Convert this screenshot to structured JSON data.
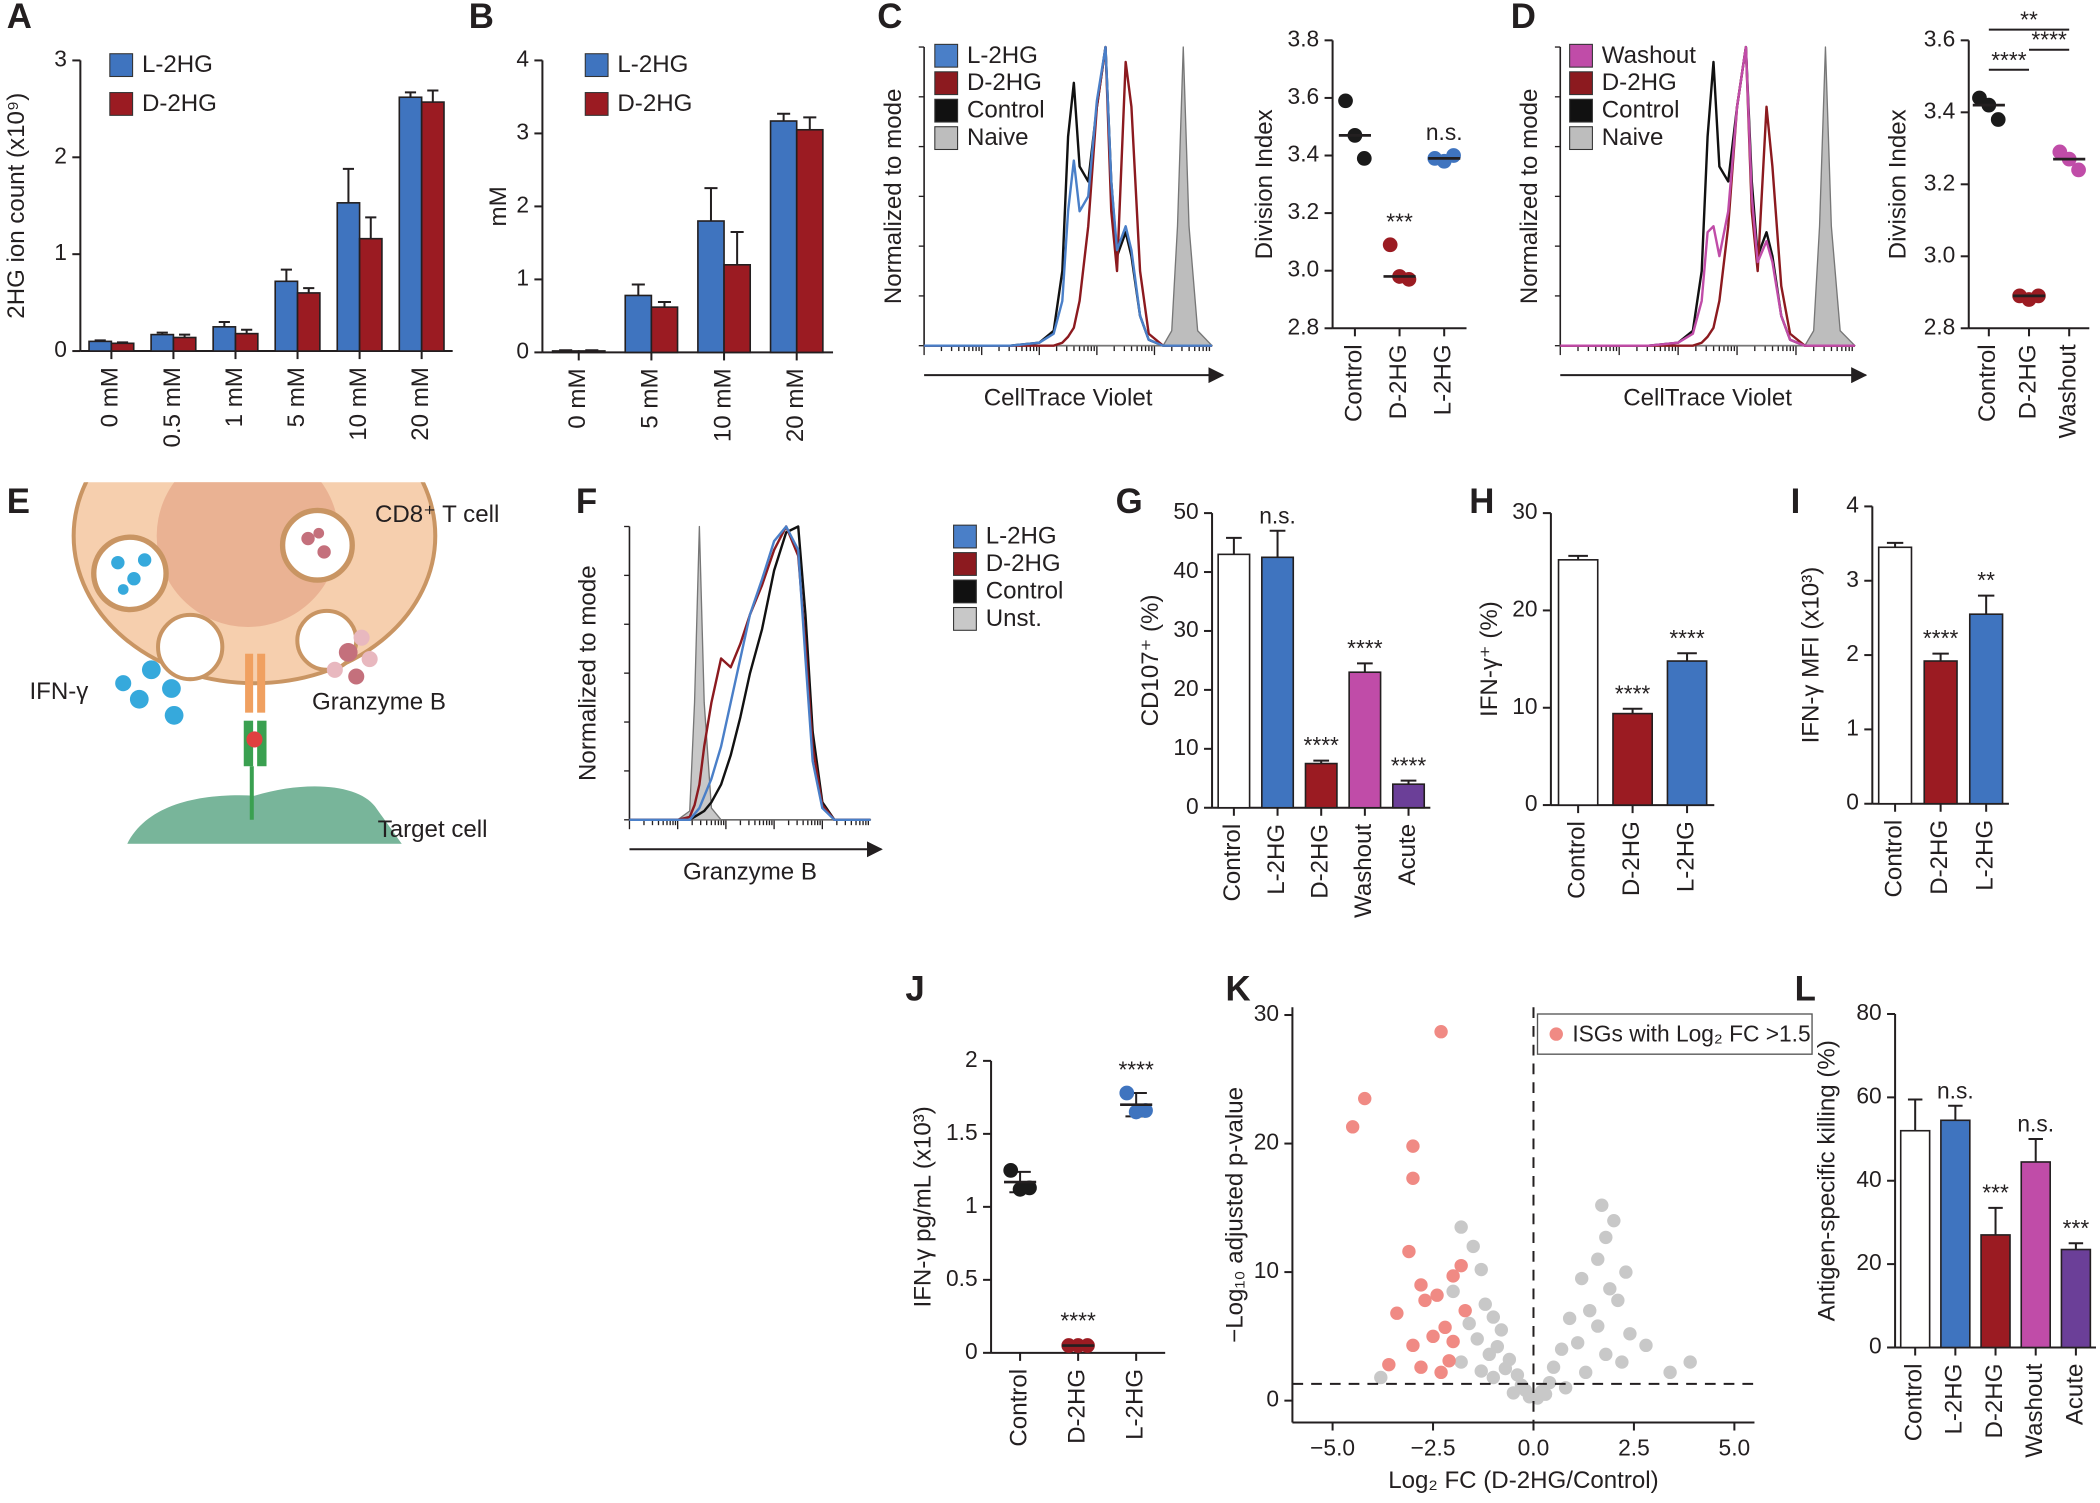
{
  "chart_data": [
    {
      "type": "bar",
      "panel": "A",
      "ylabel": "2HG ion count (x10⁹)",
      "categories": [
        "0 mM",
        "0.5 mM",
        "1 mM",
        "5 mM",
        "10 mM",
        "20 mM"
      ],
      "series": [
        {
          "name": "L-2HG",
          "color": "#3f74bf",
          "values": [
            0.1,
            0.17,
            0.25,
            0.72,
            1.53,
            2.62
          ],
          "errors": [
            0.01,
            0.02,
            0.05,
            0.12,
            0.35,
            0.05
          ]
        },
        {
          "name": "D-2HG",
          "color": "#9b1b22",
          "values": [
            0.08,
            0.14,
            0.18,
            0.6,
            1.16,
            2.57
          ],
          "errors": [
            0.01,
            0.03,
            0.04,
            0.05,
            0.22,
            0.12
          ]
        }
      ],
      "ylim": [
        0,
        3
      ],
      "yticks": [
        0,
        1,
        2,
        3
      ]
    },
    {
      "type": "bar",
      "panel": "B",
      "ylabel": "mM",
      "categories": [
        "0 mM",
        "5 mM",
        "10 mM",
        "20 mM"
      ],
      "series": [
        {
          "name": "L-2HG",
          "color": "#3f74bf",
          "values": [
            0.02,
            0.78,
            1.8,
            3.17
          ],
          "errors": [
            0.01,
            0.15,
            0.45,
            0.1
          ]
        },
        {
          "name": "D-2HG",
          "color": "#9b1b22",
          "values": [
            0.02,
            0.62,
            1.2,
            3.05
          ],
          "errors": [
            0.01,
            0.07,
            0.45,
            0.17
          ]
        }
      ],
      "ylim": [
        0,
        4
      ],
      "yticks": [
        0,
        1,
        2,
        3,
        4
      ]
    },
    {
      "type": "flow",
      "panel": "C",
      "xlabel": "CellTrace Violet",
      "ylabel": "Normalized to mode",
      "x": [
        0,
        30,
        40,
        45,
        48,
        50,
        52,
        54,
        57,
        60,
        63,
        65,
        67,
        70,
        72,
        75,
        78,
        83,
        86,
        88,
        90,
        92,
        95,
        100
      ],
      "series": [
        {
          "name": "L-2HG",
          "color": "#4a7fc8",
          "values": [
            0,
            0,
            1,
            4,
            15,
            45,
            62,
            45,
            50,
            82,
            100,
            55,
            32,
            40,
            32,
            10,
            2,
            0,
            0,
            0,
            0,
            0,
            0,
            0
          ]
        },
        {
          "name": "D-2HG",
          "color": "#8c1a1f",
          "values": [
            0,
            0,
            0,
            0,
            1,
            3,
            6,
            15,
            40,
            80,
            100,
            45,
            25,
            95,
            80,
            25,
            4,
            0,
            0,
            0,
            0,
            0,
            0,
            0
          ]
        },
        {
          "name": "Control",
          "color": "#111111",
          "values": [
            0,
            0,
            1,
            5,
            25,
            70,
            88,
            60,
            55,
            80,
            100,
            55,
            30,
            38,
            30,
            10,
            2,
            0,
            0,
            0,
            0,
            0,
            0,
            0
          ]
        },
        {
          "name": "Naive",
          "color": "#bdbdbd",
          "fill": true,
          "values": [
            0,
            0,
            0,
            0,
            0,
            0,
            0,
            0,
            0,
            0,
            0,
            0,
            0,
            0,
            0,
            0,
            0,
            0,
            5,
            40,
            100,
            40,
            5,
            0
          ]
        }
      ],
      "xlim": [
        0,
        100
      ],
      "ylim": [
        0,
        100
      ]
    },
    {
      "type": "dot",
      "ylabel": "Division Index",
      "categories": [
        "Control",
        "D-2HG",
        "L-2HG"
      ],
      "colors": [
        "#1a1a1a",
        "#9b1b22",
        "#3f74bf"
      ],
      "points": [
        [
          3.59,
          3.47,
          3.39
        ],
        [
          3.09,
          2.98,
          2.97
        ],
        [
          3.39,
          3.38,
          3.4
        ]
      ],
      "means": [
        3.47,
        2.98,
        3.39
      ],
      "annotations": [
        null,
        "***",
        "n.s."
      ],
      "ylim": [
        2.8,
        3.8
      ],
      "yticks": [
        2.8,
        {
          "value": 3,
          "label": "3.0"
        },
        3.2,
        3.4,
        3.6,
        3.8
      ]
    },
    {
      "type": "flow",
      "panel": "D",
      "xlabel": "CellTrace Violet",
      "ylabel": "Normalized to mode",
      "x": [
        0,
        30,
        40,
        45,
        48,
        50,
        52,
        54,
        57,
        60,
        63,
        65,
        67,
        70,
        72,
        75,
        78,
        83,
        86,
        88,
        90,
        92,
        95,
        100
      ],
      "series": [
        {
          "name": "Washout",
          "color": "#c04ca8",
          "values": [
            0,
            0,
            1,
            4,
            15,
            38,
            40,
            30,
            45,
            80,
            100,
            50,
            28,
            35,
            28,
            10,
            2,
            0,
            0,
            0,
            0,
            0,
            0,
            0
          ]
        },
        {
          "name": "D-2HG",
          "color": "#8c1a1f",
          "values": [
            0,
            0,
            0,
            0,
            1,
            3,
            6,
            15,
            40,
            80,
            100,
            45,
            25,
            80,
            60,
            20,
            4,
            0,
            0,
            0,
            0,
            0,
            0,
            0
          ]
        },
        {
          "name": "Control",
          "color": "#111111",
          "values": [
            0,
            0,
            1,
            5,
            25,
            70,
            95,
            60,
            55,
            80,
            100,
            55,
            30,
            38,
            30,
            10,
            2,
            0,
            0,
            0,
            0,
            0,
            0,
            0
          ]
        },
        {
          "name": "Naive",
          "color": "#bdbdbd",
          "fill": true,
          "values": [
            0,
            0,
            0,
            0,
            0,
            0,
            0,
            0,
            0,
            0,
            0,
            0,
            0,
            0,
            0,
            0,
            0,
            0,
            5,
            40,
            100,
            40,
            5,
            0
          ]
        }
      ],
      "xlim": [
        0,
        100
      ],
      "ylim": [
        0,
        100
      ]
    },
    {
      "type": "dot",
      "ylabel": "Division Index",
      "categories": [
        "Control",
        "D-2HG",
        "Washout"
      ],
      "colors": [
        "#1a1a1a",
        "#9b1b22",
        "#c04ca8"
      ],
      "points": [
        [
          3.44,
          3.42,
          3.38
        ],
        [
          2.89,
          2.88,
          2.89
        ],
        [
          3.29,
          3.27,
          3.24
        ]
      ],
      "means": [
        3.42,
        2.89,
        3.27
      ],
      "comparisons": [
        {
          "groups": [
            "Control",
            "Washout"
          ],
          "label": "**"
        },
        {
          "groups": [
            "D-2HG",
            "Washout"
          ],
          "label": "****"
        },
        {
          "groups": [
            "Control",
            "D-2HG"
          ],
          "label": "****"
        }
      ],
      "ylim": [
        2.8,
        3.6
      ],
      "yticks": [
        2.8,
        {
          "value": 3,
          "label": "3.0"
        },
        3.2,
        3.4,
        3.6
      ]
    },
    {
      "type": "diagram",
      "panel": "E",
      "labels": [
        "CD8⁺ T cell",
        "IFN-γ",
        "Granzyme B",
        "Target cell"
      ]
    },
    {
      "type": "flow",
      "panel": "F",
      "xlabel": "Granzyme B",
      "ylabel": "Normalized to mode",
      "x": [
        0,
        20,
        25,
        27,
        29,
        31,
        34,
        38,
        42,
        46,
        50,
        55,
        60,
        65,
        70,
        73,
        76,
        80,
        85,
        100
      ],
      "series": [
        {
          "name": "L-2HG",
          "color": "#4a7fc8",
          "values": [
            0,
            0,
            0,
            2,
            4,
            8,
            14,
            25,
            40,
            55,
            70,
            82,
            95,
            100,
            92,
            55,
            20,
            4,
            0,
            0
          ]
        },
        {
          "name": "D-2HG",
          "color": "#8c1a1f",
          "values": [
            0,
            0,
            1,
            5,
            12,
            25,
            40,
            55,
            52,
            60,
            70,
            80,
            92,
            100,
            90,
            60,
            25,
            5,
            0,
            0
          ]
        },
        {
          "name": "Control",
          "color": "#111111",
          "values": [
            0,
            0,
            0,
            1,
            2,
            3,
            6,
            12,
            22,
            35,
            50,
            65,
            85,
            98,
            100,
            70,
            30,
            6,
            0,
            0
          ]
        },
        {
          "name": "Unst.",
          "color": "#c8c8c8",
          "fill": true,
          "values": [
            0,
            0,
            3,
            40,
            100,
            40,
            4,
            0,
            0,
            0,
            0,
            0,
            0,
            0,
            0,
            0,
            0,
            0,
            0,
            0
          ]
        }
      ],
      "xlim": [
        0,
        100
      ],
      "ylim": [
        0,
        100
      ]
    },
    {
      "type": "bar",
      "panel": "G",
      "ylabel": "CD107⁺ (%)",
      "categories": [
        "Control",
        "L-2HG",
        "D-2HG",
        "Washout",
        "Acute"
      ],
      "colors": [
        "#ffffff",
        "#3f74bf",
        "#9b1b22",
        "#c04ca8",
        "#6b3f98"
      ],
      "values": [
        43,
        42.5,
        7.5,
        23,
        4
      ],
      "errors": [
        2.8,
        4.5,
        0.5,
        1.5,
        0.6
      ],
      "annotations": [
        null,
        "n.s.",
        "****",
        "****",
        "****"
      ],
      "ylim": [
        0,
        50
      ],
      "yticks": [
        0,
        10,
        20,
        30,
        40,
        50
      ]
    },
    {
      "type": "bar",
      "panel": "H",
      "ylabel": "IFN-γ⁺ (%)",
      "categories": [
        "Control",
        "D-2HG",
        "L-2HG"
      ],
      "colors": [
        "#ffffff",
        "#9b1b22",
        "#3f74bf"
      ],
      "values": [
        25.2,
        9.4,
        14.8
      ],
      "errors": [
        0.4,
        0.5,
        0.8
      ],
      "annotations": [
        null,
        "****",
        "****"
      ],
      "ylim": [
        0,
        30
      ],
      "yticks": [
        0,
        10,
        20,
        30
      ]
    },
    {
      "type": "bar",
      "panel": "I",
      "ylabel": "IFN-γ MFI (x10³)",
      "categories": [
        "Control",
        "D-2HG",
        "L-2HG"
      ],
      "colors": [
        "#ffffff",
        "#9b1b22",
        "#3f74bf"
      ],
      "values": [
        3.45,
        1.92,
        2.55
      ],
      "errors": [
        0.06,
        0.1,
        0.25
      ],
      "annotations": [
        null,
        "****",
        "**"
      ],
      "ylim": [
        0,
        4
      ],
      "yticks": [
        0,
        1,
        2,
        3,
        4
      ]
    },
    {
      "type": "dot",
      "panel": "J",
      "ylabel": "IFN-γ pg/mL (x10³)",
      "categories": [
        "Control",
        "D-2HG",
        "L-2HG"
      ],
      "colors": [
        "#1a1a1a",
        "#9b1b22",
        "#3f74bf"
      ],
      "points": [
        [
          1.25,
          1.12,
          1.13
        ],
        [
          0.05,
          0.05,
          0.05
        ],
        [
          1.78,
          1.65,
          1.66
        ]
      ],
      "means": [
        1.17,
        0.05,
        1.7
      ],
      "errors": [
        0.07,
        0.01,
        0.08
      ],
      "annotations": [
        null,
        "****",
        "****"
      ],
      "ylim": [
        0,
        2
      ],
      "yticks": [
        0,
        0.5,
        1,
        1.5,
        2
      ]
    },
    {
      "type": "scatter",
      "panel": "K",
      "xlabel": "Log₂ FC (D-2HG/Control)",
      "ylabel": "−Log₁₀ adjusted p-value",
      "series": [
        {
          "color": "#c8c8c8",
          "x": [
            -1.8,
            -1.5,
            -1.3,
            -2.0,
            -1.2,
            -1.0,
            -1.6,
            -0.8,
            -1.4,
            -0.9,
            -1.1,
            -0.6,
            -1.8,
            -0.7,
            -0.4,
            -1.0,
            -0.3,
            -0.2,
            -0.5,
            -0.1,
            -3.8,
            -1.3,
            1.7,
            2.0,
            1.8,
            1.6,
            2.3,
            1.2,
            1.9,
            2.1,
            1.4,
            0.9,
            1.6,
            2.4,
            1.1,
            0.7,
            1.8,
            2.2,
            0.5,
            1.3,
            0.4,
            0.2,
            0.8,
            3.9,
            3.4,
            2.8,
            0.1,
            0.3
          ],
          "values": [
            13.5,
            12.0,
            10.2,
            8.5,
            7.5,
            6.5,
            6.0,
            5.5,
            4.8,
            4.2,
            3.6,
            3.2,
            3.0,
            2.5,
            2.0,
            1.8,
            1.2,
            0.8,
            0.6,
            0.3,
            1.8,
            2.3,
            15.2,
            14.0,
            12.7,
            11.0,
            10.0,
            9.5,
            8.7,
            7.8,
            7.0,
            6.4,
            5.8,
            5.2,
            4.5,
            4.0,
            3.6,
            3.0,
            2.6,
            2.2,
            1.4,
            0.7,
            1.0,
            3.0,
            2.2,
            4.3,
            0.2,
            0.5
          ]
        },
        {
          "name": "ISGs with Log₂ FC >1.5",
          "color": "#f08a84",
          "x": [
            -4.5,
            -4.2,
            -2.3,
            -3.0,
            -3.0,
            -3.1,
            -2.8,
            -1.8,
            -2.0,
            -2.4,
            -3.4,
            -2.2,
            -2.5,
            -3.0,
            -2.0,
            -3.6,
            -2.8,
            -2.3,
            -2.1,
            -1.7,
            -2.7
          ],
          "values": [
            21.3,
            23.5,
            28.7,
            19.8,
            17.3,
            11.6,
            9.0,
            10.5,
            9.7,
            8.2,
            6.8,
            5.7,
            5.0,
            4.3,
            4.6,
            2.8,
            2.6,
            2.2,
            3.1,
            7.0,
            7.8
          ]
        }
      ],
      "vline": 0,
      "hline": 1.3,
      "xlim": [
        -6,
        5.5
      ],
      "xticks": [
        {
          "value": -5,
          "label": "−5.0"
        },
        {
          "value": -2.5,
          "label": "−2.5"
        },
        {
          "value": 0,
          "label": "0.0"
        },
        2.5,
        {
          "value": 5,
          "label": "5.0"
        }
      ],
      "ylim": [
        -1.7,
        30.6
      ],
      "yticks": [
        0,
        10,
        20,
        30
      ]
    },
    {
      "type": "bar",
      "panel": "L",
      "ylabel": "Antigen-specific killing (%)",
      "categories": [
        "Control",
        "L-2HG",
        "D-2HG",
        "Washout",
        "Acute"
      ],
      "colors": [
        "#ffffff",
        "#3f74bf",
        "#9b1b22",
        "#c04ca8",
        "#6b3f98"
      ],
      "values": [
        52,
        54.5,
        27,
        44.5,
        23.5
      ],
      "errors": [
        7.5,
        3.5,
        6.5,
        5.5,
        1.5
      ],
      "annotations": [
        null,
        "n.s.",
        "***",
        "n.s.",
        "***"
      ],
      "ylim": [
        0,
        80
      ],
      "yticks": [
        0,
        20,
        40,
        60,
        80
      ]
    }
  ]
}
